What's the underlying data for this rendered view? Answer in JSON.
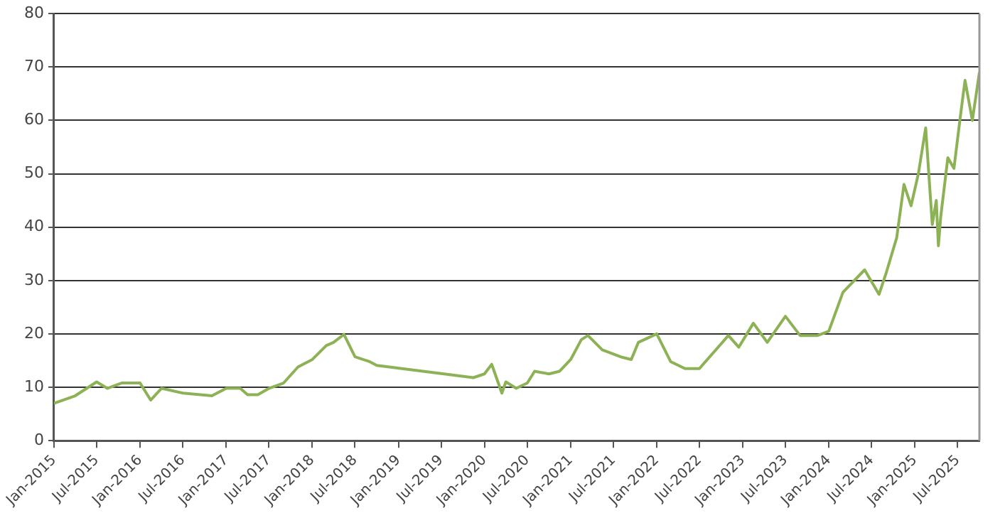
{
  "chart_data": {
    "type": "line",
    "xlim": [
      "2015-01-01",
      "2025-10-01"
    ],
    "ylim": [
      0,
      80
    ],
    "yticks": [
      0,
      10,
      20,
      30,
      40,
      50,
      60,
      70,
      80
    ],
    "xticks": [
      {
        "value": "2015-01",
        "label": "Jan-2015"
      },
      {
        "value": "2015-07",
        "label": "Jul-2015"
      },
      {
        "value": "2016-01",
        "label": "Jan-2016"
      },
      {
        "value": "2016-07",
        "label": "Jul-2016"
      },
      {
        "value": "2017-01",
        "label": "Jan-2017"
      },
      {
        "value": "2017-07",
        "label": "Jul-2017"
      },
      {
        "value": "2018-01",
        "label": "Jan-2018"
      },
      {
        "value": "2018-07",
        "label": "Jul-2018"
      },
      {
        "value": "2019-01",
        "label": "Jan-2019"
      },
      {
        "value": "2019-07",
        "label": "Jul-2019"
      },
      {
        "value": "2020-01",
        "label": "Jan-2020"
      },
      {
        "value": "2020-07",
        "label": "Jul-2020"
      },
      {
        "value": "2021-01",
        "label": "Jan-2021"
      },
      {
        "value": "2021-07",
        "label": "Jul-2021"
      },
      {
        "value": "2022-01",
        "label": "Jan-2022"
      },
      {
        "value": "2022-07",
        "label": "Jul-2022"
      },
      {
        "value": "2023-01",
        "label": "Jan-2023"
      },
      {
        "value": "2023-07",
        "label": "Jul-2023"
      },
      {
        "value": "2024-01",
        "label": "Jan-2024"
      },
      {
        "value": "2024-07",
        "label": "Jul-2024"
      },
      {
        "value": "2025-01",
        "label": "Jan-2025"
      },
      {
        "value": "2025-07",
        "label": "Jul-2025"
      }
    ],
    "x": [
      "2015-01-01",
      "2015-04-01",
      "2015-07-01",
      "2015-08-15",
      "2015-10-15",
      "2016-01-01",
      "2016-02-15",
      "2016-04-01",
      "2016-07-01",
      "2016-11-01",
      "2017-01-01",
      "2017-03-01",
      "2017-04-01",
      "2017-05-15",
      "2017-07-01",
      "2017-09-01",
      "2017-11-01",
      "2018-01-01",
      "2018-03-01",
      "2018-04-01",
      "2018-05-15",
      "2018-07-01",
      "2018-09-01",
      "2018-10-01",
      "2019-11-15",
      "2020-01-01",
      "2020-02-01",
      "2020-03-15",
      "2020-04-01",
      "2020-05-15",
      "2020-07-01",
      "2020-08-01",
      "2020-10-01",
      "2020-11-15",
      "2021-01-01",
      "2021-02-15",
      "2021-03-15",
      "2021-05-15",
      "2021-08-01",
      "2021-09-15",
      "2021-10-15",
      "2022-01-01",
      "2022-03-01",
      "2022-05-01",
      "2022-07-01",
      "2022-11-01",
      "2022-12-15",
      "2023-02-15",
      "2023-04-15",
      "2023-07-01",
      "2023-09-01",
      "2023-11-15",
      "2024-01-01",
      "2024-03-01",
      "2024-06-01",
      "2024-08-01",
      "2024-09-01",
      "2024-10-15",
      "2024-11-15",
      "2024-12-15",
      "2025-01-15",
      "2025-02-15",
      "2025-03-15",
      "2025-04-01",
      "2025-04-10",
      "2025-04-20",
      "2025-05-20",
      "2025-06-15",
      "2025-07-10",
      "2025-08-01",
      "2025-09-01",
      "2025-10-01"
    ],
    "series": [
      {
        "color": "#8db255",
        "values": [
          7.0,
          8.4,
          11.0,
          9.8,
          10.8,
          10.8,
          7.6,
          9.8,
          8.9,
          8.4,
          9.8,
          9.8,
          8.6,
          8.6,
          9.8,
          10.8,
          13.8,
          15.2,
          17.8,
          18.4,
          19.9,
          15.7,
          14.8,
          14.1,
          11.8,
          12.5,
          14.3,
          8.9,
          11.0,
          9.8,
          10.8,
          13.0,
          12.5,
          13.0,
          15.2,
          18.9,
          19.7,
          17.0,
          15.7,
          15.2,
          18.4,
          20.0,
          14.8,
          13.5,
          13.5,
          19.7,
          17.5,
          22.0,
          18.4,
          23.3,
          19.7,
          19.7,
          20.5,
          27.8,
          32.0,
          27.4,
          31.5,
          38.0,
          48.0,
          44.0,
          50.0,
          58.6,
          40.5,
          45.0,
          36.5,
          42.0,
          53.0,
          51.0,
          60.0,
          67.5,
          60.0,
          69.0
        ]
      }
    ],
    "grid": "y",
    "legend": false,
    "marker": "none",
    "line_style": "solid"
  }
}
